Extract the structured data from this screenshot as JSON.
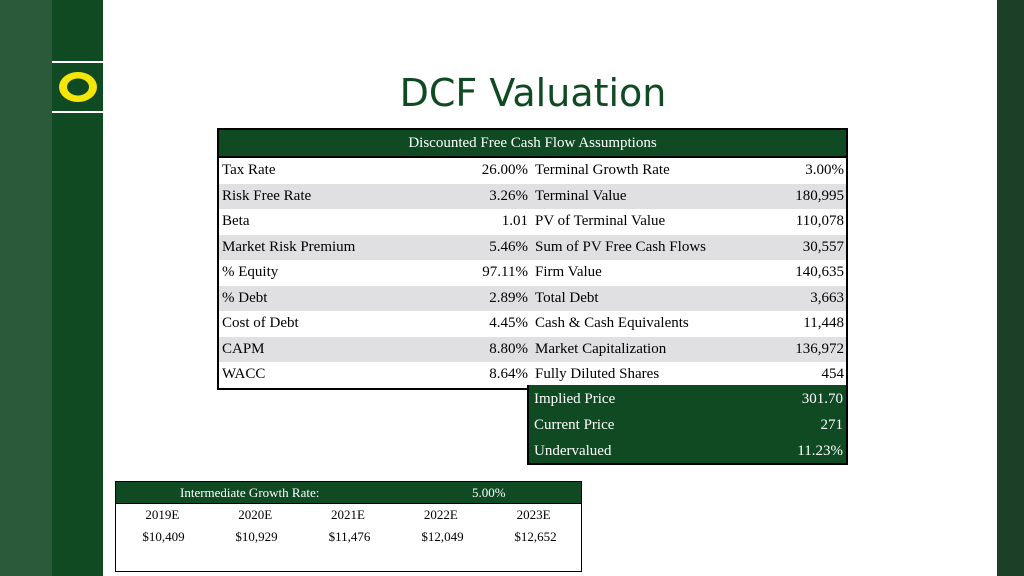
{
  "title": "DCF Valuation",
  "colors": {
    "brand_green": "#0f4a23",
    "brand_yellow": "#f5e60a"
  },
  "logo": {
    "icon": "o-letter-logo-icon"
  },
  "assumptions": {
    "header": "Discounted Free Cash Flow Assumptions",
    "rows": [
      {
        "l1": "Tax Rate",
        "v1": "26.00%",
        "l2": "Terminal Growth Rate",
        "v2": "3.00%"
      },
      {
        "l1": "Risk Free Rate",
        "v1": "3.26%",
        "l2": "Terminal Value",
        "v2": "180,995"
      },
      {
        "l1": "Beta",
        "v1": "1.01",
        "l2": "PV of Terminal Value",
        "v2": "110,078"
      },
      {
        "l1": "Market Risk Premium",
        "v1": "5.46%",
        "l2": "Sum of PV Free Cash Flows",
        "v2": "30,557"
      },
      {
        "l1": "% Equity",
        "v1": "97.11%",
        "l2": "Firm Value",
        "v2": "140,635"
      },
      {
        "l1": "% Debt",
        "v1": "2.89%",
        "l2": "Total Debt",
        "v2": "3,663"
      },
      {
        "l1": "Cost of Debt",
        "v1": "4.45%",
        "l2": "Cash & Cash Equivalents",
        "v2": "11,448"
      },
      {
        "l1": "CAPM",
        "v1": "8.80%",
        "l2": "Market Capitalization",
        "v2": "136,972"
      },
      {
        "l1": "WACC",
        "v1": "8.64%",
        "l2": "Fully Diluted Shares",
        "v2": "454"
      }
    ]
  },
  "price": [
    {
      "label": "Implied Price",
      "value": "301.70"
    },
    {
      "label": "Current Price",
      "value": "271"
    },
    {
      "label": "Undervalued",
      "value": "11.23%"
    }
  ],
  "growth": {
    "label": "Intermediate Growth Rate:",
    "rate": "5.00%",
    "years": [
      "2019E",
      "2020E",
      "2021E",
      "2022E",
      "2023E"
    ],
    "values": [
      "$10,409",
      "$10,929",
      "$11,476",
      "$12,049",
      "$12,652"
    ]
  }
}
